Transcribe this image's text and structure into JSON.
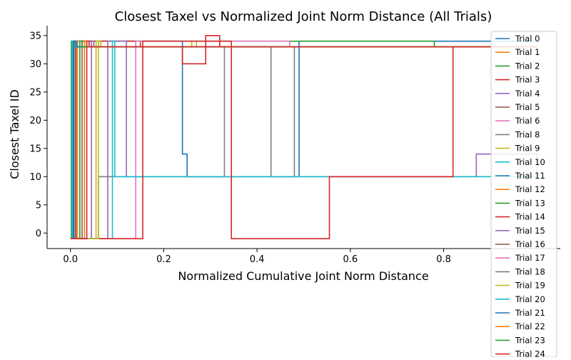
{
  "chart_data": {
    "type": "line",
    "title": "Closest Taxel vs Normalized Joint Norm Distance (All Trials)",
    "xlabel": "Normalized Cumulative Joint Norm Distance",
    "ylabel": "Closest Taxel ID",
    "xlim": [
      -0.05,
      1.05
    ],
    "ylim": [
      -2.75,
      36.75
    ],
    "x_ticks": [
      0.0,
      0.2,
      0.4,
      0.6,
      0.8
    ],
    "x_tick_labels": [
      "0.0",
      "0.2",
      "0.4",
      "0.6",
      "0.8"
    ],
    "y_ticks": [
      0,
      5,
      10,
      15,
      20,
      25,
      30,
      35
    ],
    "y_tick_labels": [
      "0",
      "5",
      "10",
      "15",
      "20",
      "25",
      "30",
      "35"
    ],
    "grid": false,
    "legend_position": "right",
    "step": true,
    "series": [
      {
        "name": "Trial 0",
        "color": "#1f77b4",
        "x": [
          0,
          0.005,
          0.08,
          0.24,
          0.25,
          0.42,
          0.49,
          1.0
        ],
        "y": [
          -1,
          34,
          34,
          14,
          10,
          10,
          34,
          34
        ]
      },
      {
        "name": "Trial 1",
        "color": "#ff7f0e",
        "x": [
          0,
          0.01,
          0.05,
          1.0
        ],
        "y": [
          -1,
          34,
          33,
          33
        ]
      },
      {
        "name": "Trial 2",
        "color": "#2ca02c",
        "x": [
          0,
          0.003,
          0.77,
          0.78,
          1.0
        ],
        "y": [
          -1,
          34,
          34,
          33,
          33
        ]
      },
      {
        "name": "Trial 3",
        "color": "#d62728",
        "x": [
          0,
          0.012,
          0.07,
          0.15,
          0.24,
          0.29,
          0.32,
          1.0
        ],
        "y": [
          -1,
          34,
          34,
          33,
          30,
          35,
          33,
          33
        ]
      },
      {
        "name": "Trial 4",
        "color": "#9467bd",
        "x": [
          0,
          0.08,
          0.12,
          0.67,
          0.87,
          0.95,
          1.0
        ],
        "y": [
          -1,
          34,
          10,
          10,
          14,
          14,
          10
        ]
      },
      {
        "name": "Trial 5",
        "color": "#8c564b",
        "x": [
          0,
          0.02,
          0.03,
          1.0
        ],
        "y": [
          -1,
          34,
          33,
          33
        ]
      },
      {
        "name": "Trial 6",
        "color": "#e377c2",
        "x": [
          0,
          0.14,
          0.24,
          0.47,
          1.0
        ],
        "y": [
          -1,
          34,
          34,
          33,
          33
        ]
      },
      {
        "name": "Trial 8",
        "color": "#7f7f7f",
        "x": [
          0,
          0.06,
          0.33,
          0.43,
          0.48,
          1.0
        ],
        "y": [
          -1,
          10,
          33,
          10,
          33,
          33
        ]
      },
      {
        "name": "Trial 9",
        "color": "#bcbd22",
        "x": [
          0,
          0.055,
          0.06,
          0.26,
          0.27,
          1.0
        ],
        "y": [
          -1,
          34,
          33,
          34,
          33,
          33
        ]
      },
      {
        "name": "Trial 10",
        "color": "#17becf",
        "x": [
          0,
          0.09,
          0.095,
          1.0
        ],
        "y": [
          -1,
          34,
          10,
          10
        ]
      },
      {
        "name": "Trial 11",
        "color": "#1f77b4",
        "x": [
          0,
          0.004,
          0.01,
          1.0
        ],
        "y": [
          -1,
          34,
          33,
          33
        ]
      },
      {
        "name": "Trial 12",
        "color": "#ff7f0e",
        "x": [
          0,
          0.015,
          0.02,
          1.0
        ],
        "y": [
          -1,
          34,
          33,
          33
        ]
      },
      {
        "name": "Trial 13",
        "color": "#2ca02c",
        "x": [
          0,
          0.002,
          0.006,
          1.0
        ],
        "y": [
          -1,
          34,
          33,
          33
        ]
      },
      {
        "name": "Trial 14",
        "color": "#d62728",
        "x": [
          0,
          0.155,
          0.345,
          0.555,
          0.82,
          1.0
        ],
        "y": [
          -1,
          34,
          -1,
          10,
          33,
          33
        ]
      },
      {
        "name": "Trial 15",
        "color": "#9467bd",
        "x": [
          0,
          0.045,
          0.05,
          1.0
        ],
        "y": [
          -1,
          34,
          33,
          33
        ]
      },
      {
        "name": "Trial 16",
        "color": "#8c564b",
        "x": [
          0,
          0.025,
          0.035,
          1.0
        ],
        "y": [
          -1,
          34,
          33,
          33
        ]
      },
      {
        "name": "Trial 17",
        "color": "#e377c2",
        "x": [
          0,
          0.03,
          0.04,
          1.0
        ],
        "y": [
          -1,
          34,
          33,
          33
        ]
      },
      {
        "name": "Trial 18",
        "color": "#7f7f7f",
        "x": [
          0,
          0.01,
          0.015,
          1.0
        ],
        "y": [
          -1,
          34,
          33,
          33
        ]
      },
      {
        "name": "Trial 19",
        "color": "#bcbd22",
        "x": [
          0,
          0.06,
          0.065,
          1.0
        ],
        "y": [
          -1,
          34,
          33,
          33
        ]
      },
      {
        "name": "Trial 20",
        "color": "#17becf",
        "x": [
          0,
          0.004,
          0.008,
          1.0
        ],
        "y": [
          -1,
          34,
          33,
          33
        ]
      },
      {
        "name": "Trial 21",
        "color": "#1f77b4",
        "x": [
          0,
          0.007,
          0.012,
          1.0
        ],
        "y": [
          -1,
          34,
          33,
          33
        ]
      },
      {
        "name": "Trial 22",
        "color": "#ff7f0e",
        "x": [
          0,
          0.03,
          0.035,
          1.0
        ],
        "y": [
          -1,
          34,
          33,
          33
        ]
      },
      {
        "name": "Trial 23",
        "color": "#2ca02c",
        "x": [
          0,
          0.02,
          0.025,
          1.0
        ],
        "y": [
          -1,
          34,
          33,
          33
        ]
      },
      {
        "name": "Trial 24",
        "color": "#d62728",
        "x": [
          0,
          0.035,
          0.04,
          1.0
        ],
        "y": [
          -1,
          34,
          33,
          33
        ]
      }
    ]
  }
}
